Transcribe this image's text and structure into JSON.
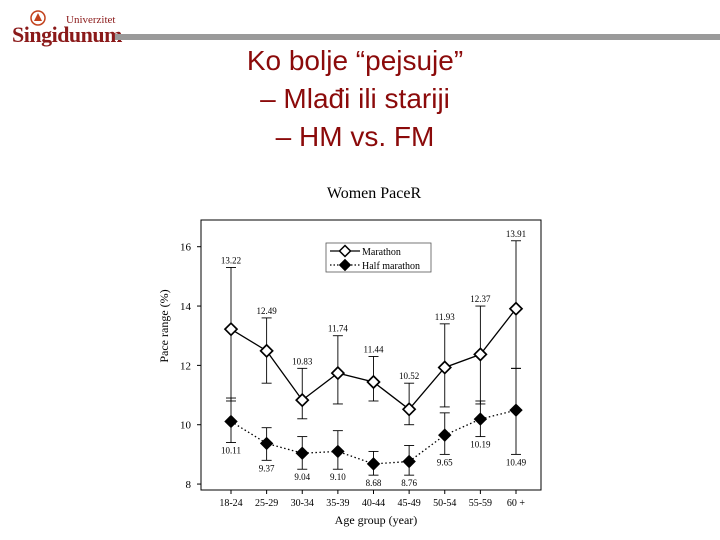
{
  "logo": {
    "small_text": "Univerzitet",
    "big_text": "Singidunum"
  },
  "slide": {
    "title_lines": [
      "Ko bolje “pejsuje”",
      "– Mlađi ili stariji",
      "– HM vs. FM"
    ]
  },
  "colors": {
    "title": "#8b0a0a",
    "logo": "#8b1a1a",
    "rule": "#9a9a9a"
  },
  "chart_data": {
    "type": "line",
    "title": "Women PaceR",
    "xlabel": "Age group (year)",
    "ylabel": "Pace range (%)",
    "categories": [
      "18-24",
      "25-29",
      "30-34",
      "35-39",
      "40-44",
      "45-49",
      "50-54",
      "55-59",
      "60 +"
    ],
    "ylim": [
      7.8,
      16.9
    ],
    "yticks": [
      8,
      10,
      12,
      14,
      16
    ],
    "legend_position": "top-left",
    "series": [
      {
        "name": "Marathon",
        "marker": "open-diamond",
        "line_style": "solid",
        "values": [
          13.22,
          12.49,
          10.83,
          11.74,
          11.44,
          10.52,
          11.93,
          12.37,
          13.91
        ],
        "labels": [
          "13.22",
          "12.49",
          "10.83",
          "11.74",
          "11.44",
          "10.52",
          "11.93",
          "12.37",
          "13.91"
        ],
        "error_upper": [
          15.3,
          13.6,
          11.9,
          13.0,
          12.3,
          11.4,
          13.4,
          14.0,
          16.2
        ],
        "error_lower": [
          10.8,
          11.4,
          10.2,
          10.7,
          10.8,
          10.0,
          10.6,
          10.7,
          11.9
        ]
      },
      {
        "name": "Half marathon",
        "marker": "filled-diamond",
        "line_style": "dotted",
        "values": [
          10.11,
          9.37,
          9.04,
          9.1,
          8.68,
          8.76,
          9.65,
          10.19,
          10.49
        ],
        "labels": [
          "10.11",
          "9.37",
          "9.04",
          "9.10",
          "8.68",
          "8.76",
          "9.65",
          "10.19",
          "10.49"
        ],
        "error_upper": [
          10.9,
          9.9,
          9.6,
          9.8,
          9.1,
          9.3,
          10.4,
          10.8,
          11.9
        ],
        "error_lower": [
          9.4,
          8.8,
          8.5,
          8.5,
          8.3,
          8.3,
          9.0,
          9.6,
          9.0
        ]
      }
    ]
  }
}
